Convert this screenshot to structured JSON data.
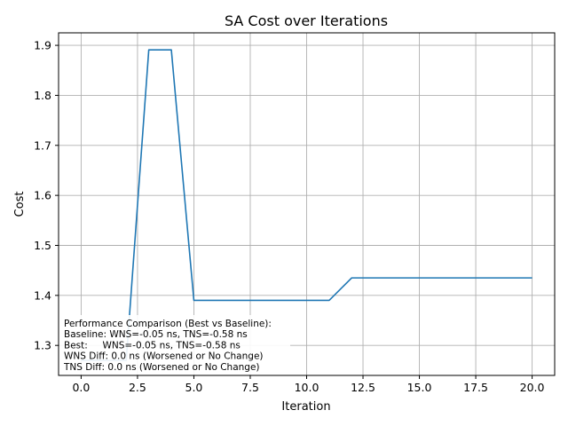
{
  "chart_data": {
    "type": "line",
    "title": "SA Cost over Iterations",
    "xlabel": "Iteration",
    "ylabel": "Cost",
    "xlim": [
      -1.0,
      21.0
    ],
    "ylim": [
      1.24,
      1.925
    ],
    "grid": true,
    "x_ticks": [
      0.0,
      2.5,
      5.0,
      7.5,
      10.0,
      12.5,
      15.0,
      17.5,
      20.0
    ],
    "x_tick_labels": [
      "0.0",
      "2.5",
      "5.0",
      "7.5",
      "10.0",
      "12.5",
      "15.0",
      "17.5",
      "20.0"
    ],
    "y_ticks": [
      1.3,
      1.4,
      1.5,
      1.6,
      1.7,
      1.8,
      1.9
    ],
    "y_tick_labels": [
      "1.3",
      "1.4",
      "1.5",
      "1.6",
      "1.7",
      "1.8",
      "1.9"
    ],
    "series": [
      {
        "name": "cost",
        "color": "#1f77b4",
        "x": [
          0,
          1,
          2,
          3,
          4,
          5,
          6,
          7,
          8,
          9,
          10,
          11,
          12,
          13,
          14,
          15,
          16,
          17,
          18,
          19,
          20
        ],
        "values": [
          1.27,
          1.27,
          1.27,
          1.891,
          1.891,
          1.39,
          1.39,
          1.39,
          1.39,
          1.39,
          1.39,
          1.39,
          1.435,
          1.435,
          1.435,
          1.435,
          1.435,
          1.435,
          1.435,
          1.435,
          1.435
        ]
      }
    ],
    "annotation": {
      "location": "bottom-left",
      "lines": [
        "Performance Comparison (Best vs Baseline):",
        "Baseline: WNS=-0.05 ns, TNS=-0.58 ns",
        "Best:     WNS=-0.05 ns, TNS=-0.58 ns",
        "WNS Diff: 0.0 ns (Worsened or No Change)",
        "TNS Diff: 0.0 ns (Worsened or No Change)"
      ]
    }
  }
}
